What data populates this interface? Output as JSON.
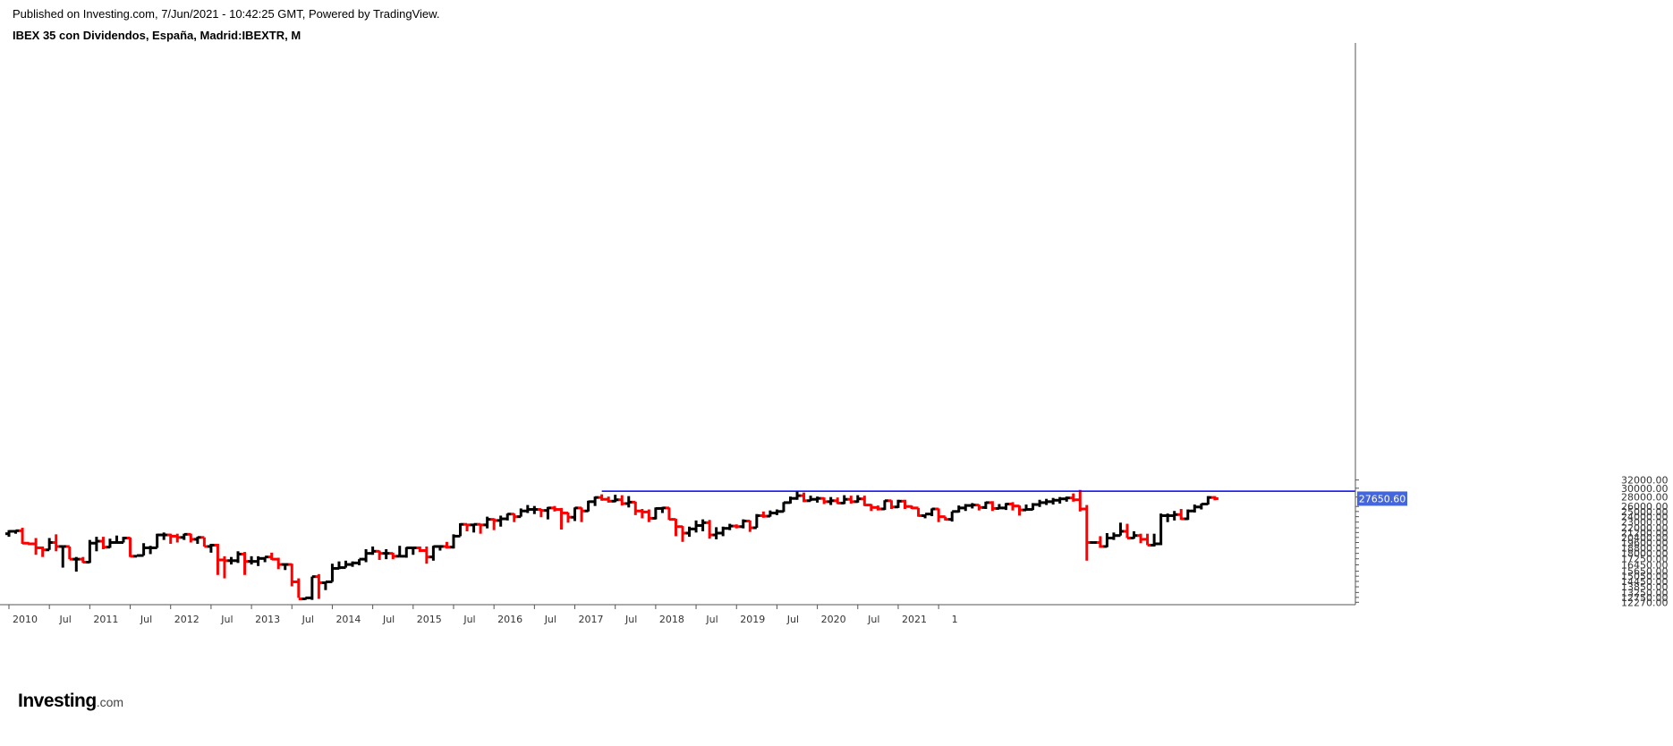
{
  "header": {
    "published": "Published on Investing.com, 7/Jun/2021 - 10:42:25 GMT, Powered by TradingView.",
    "symbol_title": "IBEX 35 con Dividendos, España, Madrid:IBEXTR, M"
  },
  "logo": {
    "name": "Investing",
    "suffix": ".com"
  },
  "chart_data": {
    "type": "ohlc",
    "timeframe": "M",
    "grid": false,
    "colors": {
      "up": "#000000",
      "down": "#ff0000",
      "resistance": "#0000ff",
      "price_tag": "#4466dd"
    },
    "y_axis": {
      "scale": "log",
      "position": "right",
      "ticks": [
        "32000.00",
        "30000.00",
        "28000.00",
        "26000.00",
        "25000.00",
        "24000.00",
        "23000.00",
        "22000.00",
        "21200.00",
        "20400.00",
        "19600.00",
        "18800.00",
        "18000.00",
        "17250.00",
        "16450.00",
        "15650.00",
        "15050.00",
        "14450.00",
        "13850.00",
        "13250.00",
        "12750.00",
        "12270.00"
      ]
    },
    "x_axis": {
      "ticks": [
        "2010",
        "Jul",
        "2011",
        "Jul",
        "2012",
        "Jul",
        "2013",
        "Jul",
        "2014",
        "Jul",
        "2015",
        "Jul",
        "2016",
        "Jul",
        "2017",
        "Jul",
        "2018",
        "Jul",
        "2019",
        "Jul",
        "2020",
        "Jul",
        "2021",
        "1"
      ]
    },
    "last_price": "27650.60",
    "resistance_level": 29300,
    "start_month": "2010-01",
    "bars": [
      [
        21000,
        21600,
        20500,
        21400
      ],
      [
        21400,
        21600,
        21000,
        21500
      ],
      [
        21500,
        22000,
        19400,
        19500
      ],
      [
        19500,
        19600,
        19200,
        19400
      ],
      [
        19400,
        20300,
        17800,
        18800
      ],
      [
        18800,
        19000,
        17500,
        18500
      ],
      [
        18500,
        20300,
        18500,
        19600
      ],
      [
        19600,
        20900,
        18300,
        19000
      ],
      [
        19000,
        19000,
        16100,
        19000
      ],
      [
        19000,
        19000,
        17200,
        17200
      ],
      [
        17200,
        17500,
        15600,
        17200
      ],
      [
        17200,
        17500,
        16700,
        16800
      ],
      [
        16800,
        20000,
        16700,
        19500
      ],
      [
        19500,
        20500,
        18300,
        19800
      ],
      [
        19800,
        20500,
        18600,
        18900
      ],
      [
        18900,
        20200,
        18800,
        19600
      ],
      [
        19600,
        20700,
        19600,
        19600
      ],
      [
        19600,
        20500,
        19600,
        20300
      ],
      [
        20300,
        20400,
        17500,
        17600
      ],
      [
        17600,
        17700,
        17600,
        17700
      ],
      [
        17700,
        19500,
        17700,
        18800
      ],
      [
        18800,
        19100,
        17900,
        18800
      ],
      [
        18800,
        21000,
        18800,
        20800
      ],
      [
        20800,
        21200,
        20000,
        20800
      ],
      [
        20800,
        21000,
        19400,
        20600
      ],
      [
        20600,
        21000,
        19600,
        20400
      ],
      [
        20400,
        21000,
        20000,
        20900
      ],
      [
        20900,
        21000,
        19600,
        20100
      ],
      [
        20100,
        20500,
        19400,
        20400
      ],
      [
        20400,
        20400,
        19000,
        19000
      ],
      [
        19000,
        19400,
        18100,
        19200
      ],
      [
        19200,
        19400,
        15200,
        17100
      ],
      [
        17100,
        17600,
        14800,
        17000
      ],
      [
        17000,
        17500,
        16500,
        17000
      ],
      [
        17000,
        18300,
        16700,
        17900
      ],
      [
        17900,
        18200,
        15200,
        16900
      ],
      [
        16900,
        17600,
        16500,
        16900
      ],
      [
        16900,
        17600,
        16300,
        17300
      ],
      [
        17300,
        17500,
        16800,
        17500
      ],
      [
        17500,
        18100,
        17100,
        17200
      ],
      [
        17200,
        17400,
        15900,
        16500
      ],
      [
        16500,
        16600,
        15800,
        16500
      ],
      [
        16500,
        16600,
        13900,
        14400
      ],
      [
        14400,
        14800,
        12700,
        12600
      ],
      [
        12600,
        12700,
        12500,
        12700
      ],
      [
        12700,
        15000,
        12500,
        15000
      ],
      [
        15000,
        15300,
        12600,
        14300
      ],
      [
        14300,
        14400,
        13500,
        14400
      ],
      [
        14400,
        16600,
        14400,
        16000
      ],
      [
        16000,
        16900,
        15900,
        16100
      ],
      [
        16100,
        17000,
        16100,
        16500
      ],
      [
        16500,
        16900,
        16200,
        16700
      ],
      [
        16700,
        17200,
        16400,
        17200
      ],
      [
        17200,
        18600,
        16800,
        18000
      ],
      [
        18000,
        19000,
        17800,
        18300
      ],
      [
        18300,
        18400,
        17100,
        18000
      ],
      [
        18000,
        18600,
        17200,
        18000
      ],
      [
        18000,
        18100,
        17200,
        17600
      ],
      [
        17600,
        19100,
        17600,
        17600
      ],
      [
        17600,
        18900,
        17400,
        18800
      ],
      [
        18800,
        18900,
        17800,
        18800
      ],
      [
        18800,
        19000,
        18200,
        18400
      ],
      [
        18400,
        19000,
        16600,
        17500
      ],
      [
        17500,
        19100,
        17000,
        19000
      ],
      [
        19000,
        19200,
        18400,
        19000
      ],
      [
        19000,
        19700,
        18700,
        18900
      ],
      [
        18900,
        20900,
        18700,
        20600
      ],
      [
        20600,
        22800,
        20600,
        22600
      ],
      [
        22600,
        22700,
        21400,
        22500
      ],
      [
        22500,
        22700,
        21200,
        22600
      ],
      [
        22600,
        22700,
        21000,
        22500
      ],
      [
        22500,
        24000,
        21900,
        23500
      ],
      [
        23500,
        23700,
        21600,
        23300
      ],
      [
        23300,
        24200,
        22200,
        23600
      ],
      [
        23600,
        24600,
        23300,
        24500
      ],
      [
        24500,
        24600,
        23000,
        24000
      ],
      [
        24000,
        25600,
        24000,
        25100
      ],
      [
        25100,
        26300,
        24700,
        25400
      ],
      [
        25400,
        26100,
        24500,
        25400
      ],
      [
        25400,
        25500,
        23900,
        25200
      ],
      [
        25200,
        25900,
        23500,
        25700
      ],
      [
        25700,
        26100,
        25000,
        25400
      ],
      [
        25400,
        25700,
        21700,
        24700
      ],
      [
        24700,
        24800,
        22900,
        23900
      ],
      [
        23900,
        25800,
        23200,
        25700
      ],
      [
        25700,
        25800,
        23000,
        25100
      ],
      [
        25100,
        27200,
        25000,
        27000
      ],
      [
        27000,
        28100,
        26100,
        27900
      ],
      [
        27900,
        28600,
        27200,
        27500
      ],
      [
        27500,
        28100,
        26800,
        27100
      ],
      [
        27100,
        28500,
        26900,
        27400
      ],
      [
        27400,
        28400,
        26200,
        26600
      ],
      [
        26600,
        28200,
        25800,
        26900
      ],
      [
        26900,
        27000,
        24300,
        25100
      ],
      [
        25100,
        25500,
        23700,
        24900
      ],
      [
        24900,
        25400,
        23000,
        23700
      ],
      [
        23700,
        25800,
        23500,
        25600
      ],
      [
        25600,
        25900,
        24700,
        25700
      ],
      [
        25700,
        25800,
        23400,
        23500
      ],
      [
        23500,
        23600,
        20600,
        22200
      ],
      [
        22200,
        22300,
        19700,
        21100
      ],
      [
        21100,
        22200,
        20500,
        21800
      ],
      [
        21800,
        23300,
        21200,
        22400
      ],
      [
        22400,
        23500,
        21400,
        22900
      ],
      [
        22900,
        23400,
        20200,
        20800
      ],
      [
        20800,
        22100,
        20100,
        21100
      ],
      [
        21100,
        22200,
        20600,
        21900
      ],
      [
        21900,
        22700,
        21600,
        22300
      ],
      [
        22300,
        22600,
        21900,
        22200
      ],
      [
        22200,
        23500,
        21900,
        23200
      ],
      [
        23200,
        23300,
        21300,
        22000
      ],
      [
        22000,
        24500,
        22000,
        24200
      ],
      [
        24200,
        25000,
        23800,
        24100
      ],
      [
        24100,
        25200,
        24000,
        24700
      ],
      [
        24700,
        25400,
        24300,
        25000
      ],
      [
        25000,
        26900,
        24900,
        26800
      ],
      [
        26800,
        28100,
        26600,
        27700
      ],
      [
        27700,
        29300,
        27400,
        28300
      ],
      [
        28300,
        29000,
        26900,
        27200
      ],
      [
        27200,
        28300,
        27100,
        27500
      ],
      [
        27500,
        28100,
        26800,
        27700
      ],
      [
        27700,
        27900,
        26500,
        27000
      ],
      [
        27000,
        28000,
        26300,
        27200
      ],
      [
        27200,
        27900,
        26500,
        26700
      ],
      [
        26700,
        28400,
        26500,
        27500
      ],
      [
        27500,
        28300,
        26600,
        27000
      ],
      [
        27000,
        28400,
        26800,
        27600
      ],
      [
        27600,
        28300,
        26100,
        26300
      ],
      [
        26300,
        26500,
        25100,
        25800
      ],
      [
        25800,
        26200,
        25200,
        25500
      ],
      [
        25500,
        27300,
        25300,
        27200
      ],
      [
        27200,
        27300,
        25500,
        25900
      ],
      [
        25900,
        27400,
        25700,
        27100
      ],
      [
        27100,
        27400,
        25500,
        26000
      ],
      [
        26000,
        26200,
        25500,
        25700
      ],
      [
        25700,
        25700,
        24000,
        24200
      ],
      [
        24200,
        24400,
        23700,
        24500
      ],
      [
        24500,
        25600,
        24100,
        25500
      ],
      [
        25500,
        25600,
        23000,
        24000
      ],
      [
        24000,
        24000,
        23300,
        23500
      ],
      [
        23500,
        25000,
        23100,
        25000
      ],
      [
        25000,
        26200,
        24800,
        25700
      ],
      [
        25700,
        26500,
        25100,
        26200
      ],
      [
        26200,
        26700,
        25600,
        26300
      ],
      [
        26300,
        26400,
        25200,
        25800
      ],
      [
        25800,
        27000,
        25500,
        26800
      ],
      [
        26800,
        27100,
        25100,
        25600
      ],
      [
        25600,
        26500,
        25500,
        25700
      ],
      [
        25700,
        26700,
        25300,
        26500
      ],
      [
        26500,
        26900,
        25200,
        26100
      ],
      [
        26100,
        26200,
        24200,
        25300
      ],
      [
        25300,
        26400,
        25200,
        25400
      ],
      [
        25400,
        26700,
        25300,
        26400
      ],
      [
        26400,
        27400,
        25900,
        26800
      ],
      [
        26800,
        27600,
        26300,
        27000
      ],
      [
        27000,
        27800,
        26400,
        27300
      ],
      [
        27300,
        28000,
        26600,
        27600
      ],
      [
        27600,
        28100,
        27000,
        27800
      ],
      [
        27800,
        28800,
        27000,
        27400
      ],
      [
        27400,
        29600,
        25000,
        25500
      ],
      [
        25500,
        26300,
        17000,
        19600
      ],
      [
        19600,
        19700,
        19500,
        19600
      ],
      [
        19600,
        20600,
        18800,
        19000
      ],
      [
        19000,
        21100,
        18900,
        20300
      ],
      [
        20300,
        21200,
        20000,
        20700
      ],
      [
        20700,
        22900,
        20700,
        21400
      ],
      [
        21400,
        22700,
        20300,
        20300
      ],
      [
        20300,
        21400,
        20200,
        20700
      ],
      [
        20700,
        21000,
        19500,
        20100
      ],
      [
        20100,
        21000,
        19200,
        19200
      ],
      [
        19200,
        21000,
        19000,
        19400
      ],
      [
        19400,
        24600,
        19200,
        24200
      ],
      [
        24200,
        24600,
        23000,
        24200
      ],
      [
        24200,
        25100,
        23300,
        24400
      ],
      [
        24400,
        25500,
        23400,
        23600
      ],
      [
        23600,
        25400,
        23400,
        25100
      ],
      [
        25100,
        26400,
        24800,
        25900
      ],
      [
        25900,
        26600,
        25400,
        26500
      ],
      [
        26500,
        28200,
        26400,
        27900
      ],
      [
        27900,
        28200,
        27300,
        27650
      ]
    ]
  }
}
